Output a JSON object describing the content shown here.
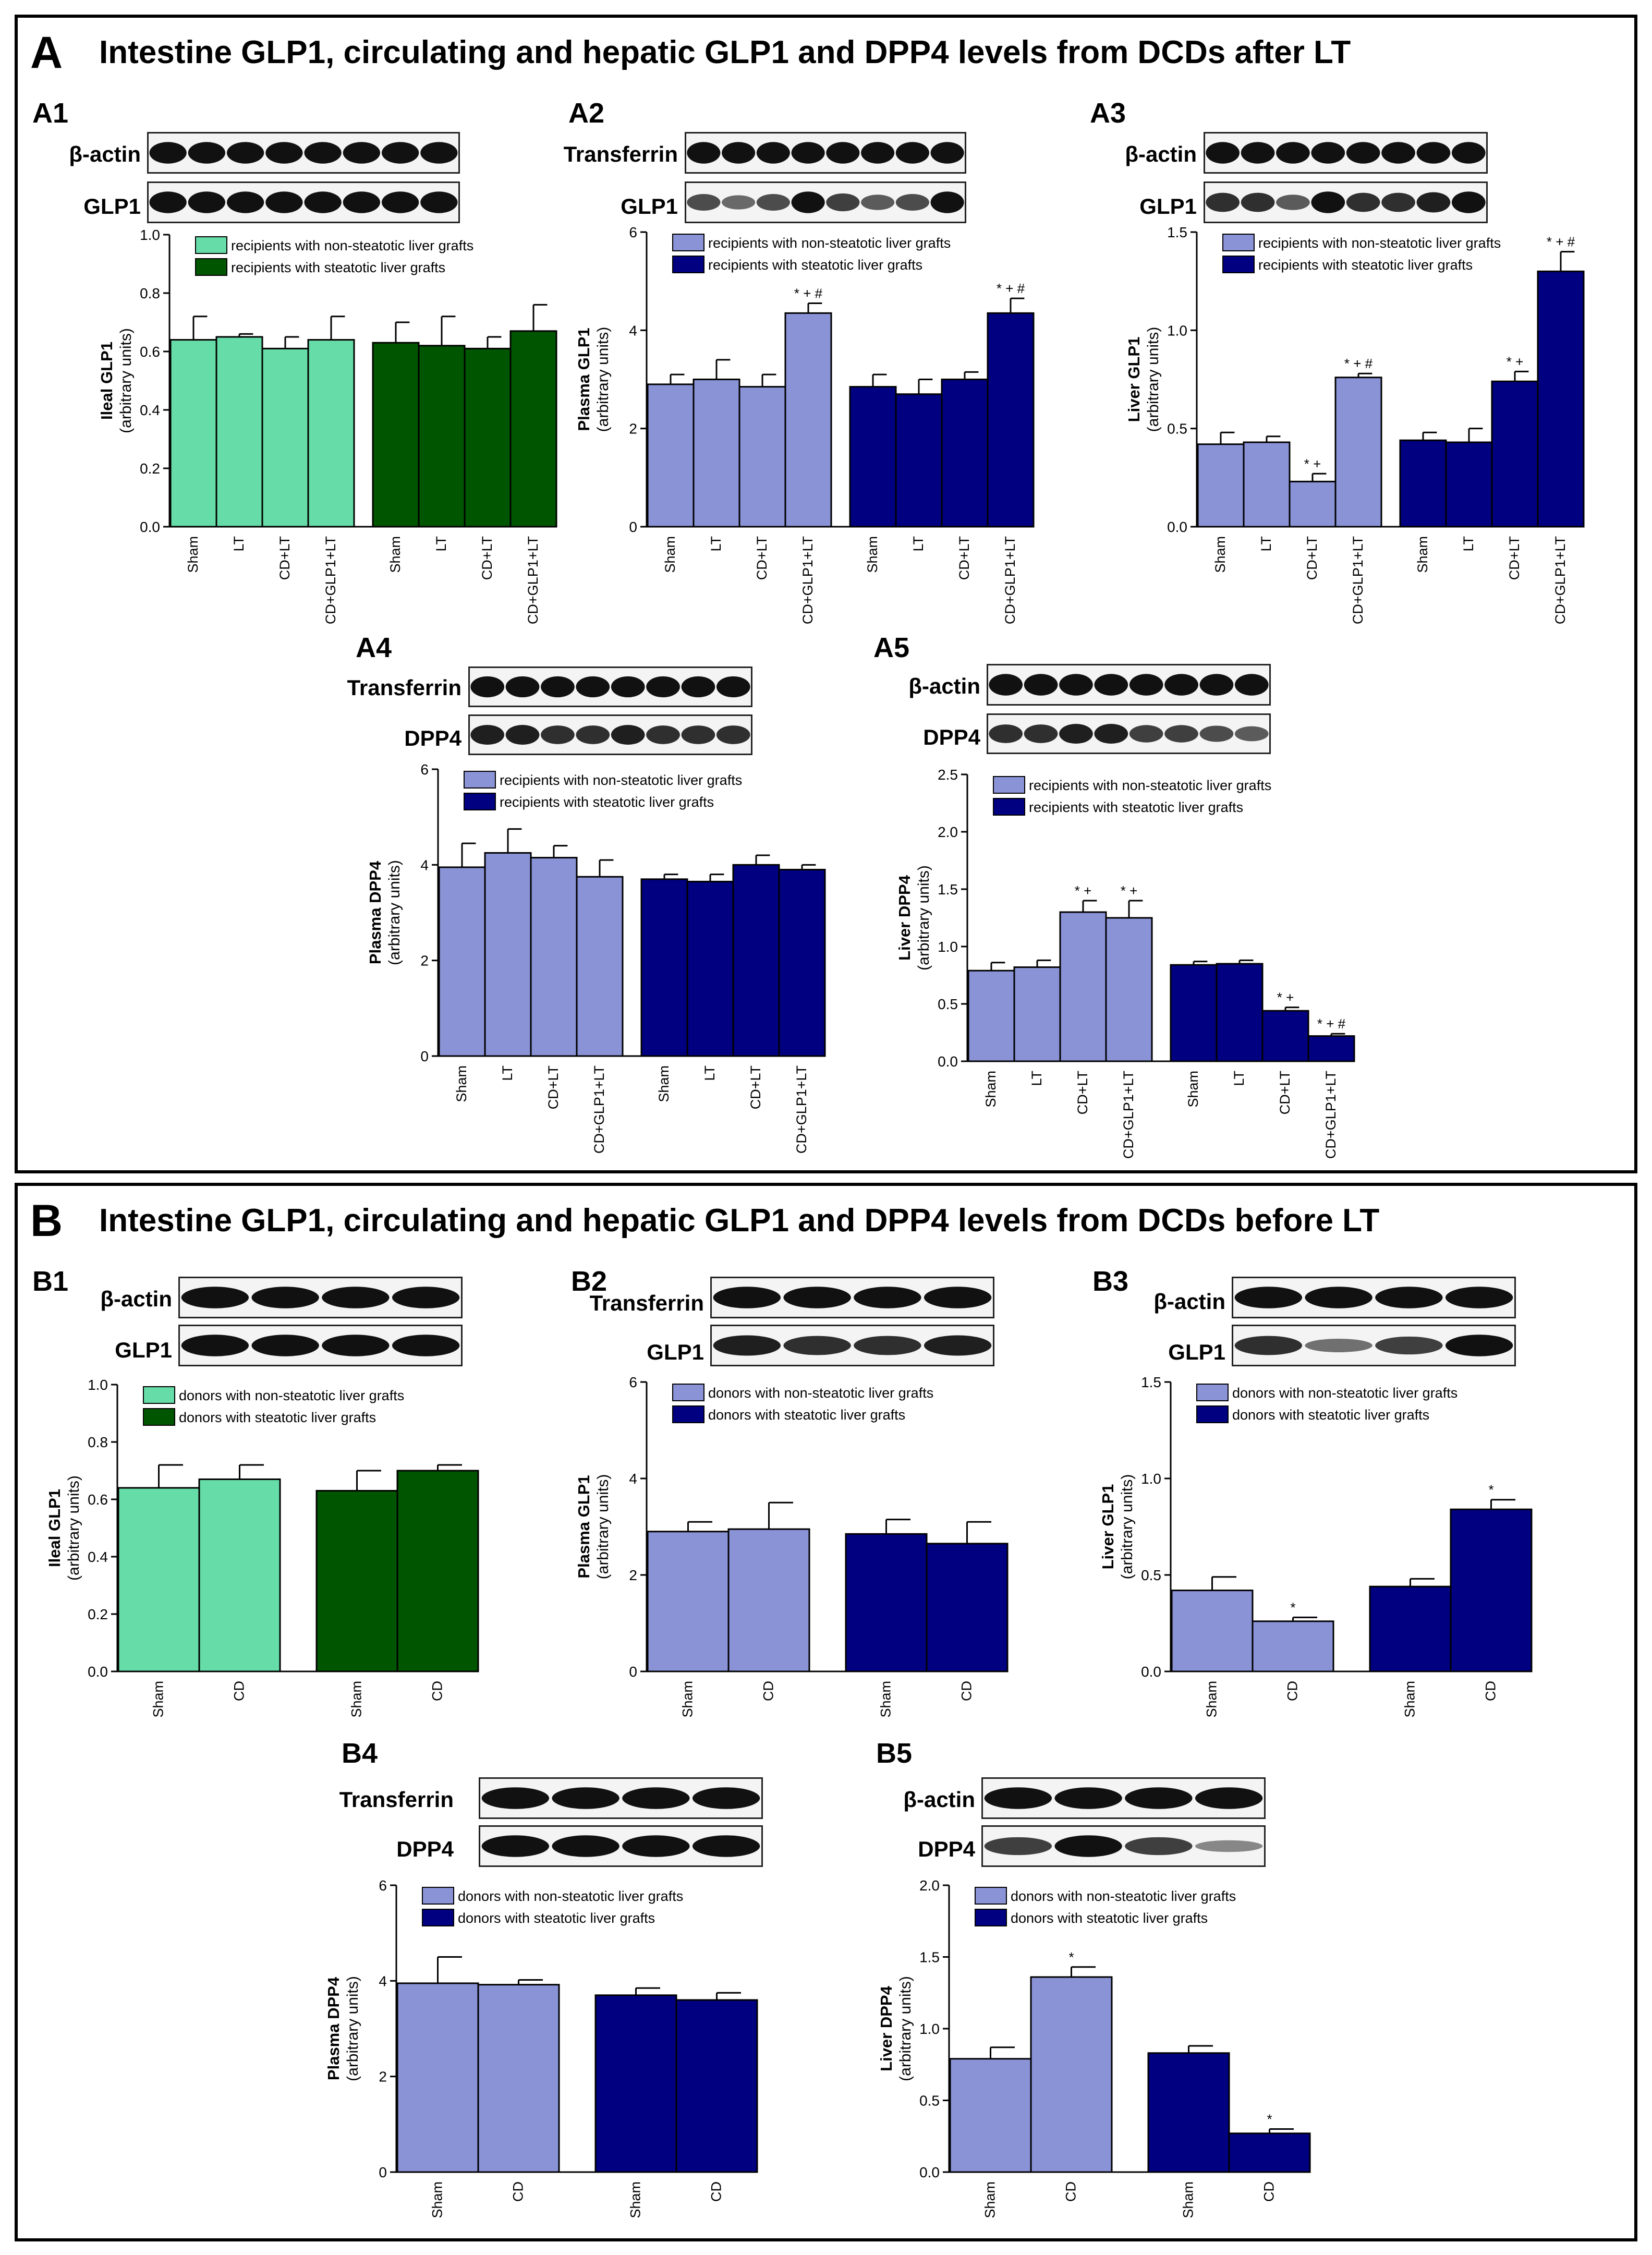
{
  "figure": {
    "sections": [
      {
        "letter": "A",
        "title": "Intestine GLP1, circulating and hepatic GLP1 and DPP4 levels from DCDs after LT"
      },
      {
        "letter": "B",
        "title": "Intestine GLP1, circulating and hepatic GLP1 and DPP4 levels from DCDs before LT"
      }
    ]
  },
  "colors": {
    "light_green": "#66dda8",
    "dark_green": "#005500",
    "light_blue": "#8a93d6",
    "dark_blue": "#000080",
    "border": "#000000"
  },
  "chart_data": [
    {
      "id": "A1",
      "type": "bar",
      "title": "A1",
      "blots": [
        {
          "label": "β-actin",
          "bands": [
            1,
            1,
            1,
            1,
            1,
            1,
            1,
            1
          ]
        },
        {
          "label": "GLP1",
          "bands": [
            1,
            1,
            1,
            1,
            1,
            1,
            1,
            1
          ]
        }
      ],
      "ylabel": "Ileal GLP1",
      "ylabel2": "(arbitrary units)",
      "ylim": [
        0,
        1.0
      ],
      "yticks": [
        "0.0",
        "0.2",
        "0.4",
        "0.6",
        "0.8",
        "1.0"
      ],
      "categories": [
        "Sham",
        "LT",
        "CD+LT",
        "CD+GLP1+LT"
      ],
      "series": [
        {
          "name": "recipients with non-steatotic liver grafts",
          "color": "#66dda8",
          "values": [
            0.64,
            0.65,
            0.61,
            0.64
          ],
          "errors": [
            0.08,
            0.01,
            0.04,
            0.08
          ],
          "annotations": [
            "",
            "",
            "",
            ""
          ]
        },
        {
          "name": "recipients with steatotic liver grafts",
          "color": "#005500",
          "values": [
            0.63,
            0.62,
            0.61,
            0.67
          ],
          "errors": [
            0.07,
            0.1,
            0.04,
            0.09
          ],
          "annotations": [
            "",
            "",
            "",
            ""
          ]
        }
      ]
    },
    {
      "id": "A2",
      "type": "bar",
      "title": "A2",
      "blots": [
        {
          "label": "Transferrin",
          "bands": [
            1,
            1,
            1,
            1,
            1,
            1,
            1,
            1
          ]
        },
        {
          "label": "GLP1",
          "bands": [
            0.6,
            0.4,
            0.6,
            1,
            0.7,
            0.5,
            0.6,
            1
          ]
        }
      ],
      "ylabel": "Plasma GLP1",
      "ylabel2": "(arbitrary units)",
      "ylim": [
        0,
        6
      ],
      "yticks": [
        "0",
        "2",
        "4",
        "6"
      ],
      "categories": [
        "Sham",
        "LT",
        "CD+LT",
        "CD+GLP1+LT"
      ],
      "series": [
        {
          "name": "recipients with non-steatotic liver grafts",
          "color": "#8a93d6",
          "values": [
            2.9,
            3.0,
            2.85,
            4.35
          ],
          "errors": [
            0.2,
            0.4,
            0.25,
            0.2
          ],
          "annotations": [
            "",
            "",
            "",
            "*+#"
          ]
        },
        {
          "name": "recipients with steatotic liver grafts",
          "color": "#000080",
          "values": [
            2.85,
            2.7,
            3.0,
            4.35
          ],
          "errors": [
            0.25,
            0.3,
            0.15,
            0.3
          ],
          "annotations": [
            "",
            "",
            "",
            "*+#"
          ]
        }
      ]
    },
    {
      "id": "A3",
      "type": "bar",
      "title": "A3",
      "blots": [
        {
          "label": "β-actin",
          "bands": [
            1,
            1,
            1,
            1,
            1,
            1,
            1,
            1
          ]
        },
        {
          "label": "GLP1",
          "bands": [
            0.8,
            0.8,
            0.5,
            1,
            0.8,
            0.8,
            0.9,
            1
          ]
        }
      ],
      "ylabel": "Liver GLP1",
      "ylabel2": "(arbitrary units)",
      "ylim": [
        0,
        1.5
      ],
      "yticks": [
        "0.0",
        "0.5",
        "1.0",
        "1.5"
      ],
      "categories": [
        "Sham",
        "LT",
        "CD+LT",
        "CD+GLP1+LT"
      ],
      "series": [
        {
          "name": "recipients with non-steatotic liver grafts",
          "color": "#8a93d6",
          "values": [
            0.42,
            0.43,
            0.23,
            0.76
          ],
          "errors": [
            0.06,
            0.03,
            0.04,
            0.02
          ],
          "annotations": [
            "",
            "",
            "*+",
            "*+#"
          ]
        },
        {
          "name": "recipients with steatotic liver grafts",
          "color": "#000080",
          "values": [
            0.44,
            0.43,
            0.74,
            1.3
          ],
          "errors": [
            0.04,
            0.07,
            0.05,
            0.1
          ],
          "annotations": [
            "",
            "",
            "*+",
            "*+#"
          ]
        }
      ]
    },
    {
      "id": "A4",
      "type": "bar",
      "title": "A4",
      "blots": [
        {
          "label": "Transferrin",
          "bands": [
            1,
            1,
            1,
            1,
            1,
            1,
            1,
            1
          ]
        },
        {
          "label": "DPP4",
          "bands": [
            0.9,
            0.9,
            0.8,
            0.8,
            0.9,
            0.8,
            0.8,
            0.8
          ]
        }
      ],
      "ylabel": "Plasma DPP4",
      "ylabel2": "(arbitrary units)",
      "ylim": [
        0,
        6
      ],
      "yticks": [
        "0",
        "2",
        "4",
        "6"
      ],
      "categories": [
        "Sham",
        "LT",
        "CD+LT",
        "CD+GLP1+LT"
      ],
      "series": [
        {
          "name": "recipients with non-steatotic liver grafts",
          "color": "#8a93d6",
          "values": [
            3.95,
            4.25,
            4.15,
            3.75
          ],
          "errors": [
            0.5,
            0.5,
            0.25,
            0.35
          ],
          "annotations": [
            "",
            "",
            "",
            ""
          ]
        },
        {
          "name": "recipients with steatotic liver grafts",
          "color": "#000080",
          "values": [
            3.7,
            3.65,
            4.0,
            3.9
          ],
          "errors": [
            0.1,
            0.15,
            0.2,
            0.1
          ],
          "annotations": [
            "",
            "",
            "",
            ""
          ]
        }
      ]
    },
    {
      "id": "A5",
      "type": "bar",
      "title": "A5",
      "blots": [
        {
          "label": "β-actin",
          "bands": [
            1,
            1,
            1,
            1,
            1,
            1,
            1,
            1
          ]
        },
        {
          "label": "DPP4",
          "bands": [
            0.8,
            0.8,
            0.9,
            0.9,
            0.7,
            0.7,
            0.6,
            0.5
          ]
        }
      ],
      "ylabel": "Liver DPP4",
      "ylabel2": "(arbitrary units)",
      "ylim": [
        0,
        2.5
      ],
      "yticks": [
        "0.0",
        "0.5",
        "1.0",
        "1.5",
        "2.0",
        "2.5"
      ],
      "categories": [
        "Sham",
        "LT",
        "CD+LT",
        "CD+GLP1+LT"
      ],
      "series": [
        {
          "name": "recipients with non-steatotic liver grafts",
          "color": "#8a93d6",
          "values": [
            0.79,
            0.82,
            1.3,
            1.25
          ],
          "errors": [
            0.07,
            0.06,
            0.1,
            0.15
          ],
          "annotations": [
            "",
            "",
            "*+",
            "*+"
          ]
        },
        {
          "name": "recipients with steatotic liver grafts",
          "color": "#000080",
          "values": [
            0.84,
            0.85,
            0.44,
            0.22
          ],
          "errors": [
            0.03,
            0.03,
            0.03,
            0.02
          ],
          "annotations": [
            "",
            "",
            "*+",
            "*+#"
          ]
        }
      ]
    },
    {
      "id": "B1",
      "type": "bar",
      "title": "B1",
      "blots": [
        {
          "label": "β-actin",
          "bands": [
            1,
            1,
            1,
            1
          ]
        },
        {
          "label": "GLP1",
          "bands": [
            1,
            1,
            1,
            1
          ]
        }
      ],
      "ylabel": "Ileal GLP1",
      "ylabel2": "(arbitrary units)",
      "ylim": [
        0,
        1.0
      ],
      "yticks": [
        "0.0",
        "0.2",
        "0.4",
        "0.6",
        "0.8",
        "1.0"
      ],
      "categories": [
        "Sham",
        "CD"
      ],
      "series": [
        {
          "name": "donors with non-steatotic liver grafts",
          "color": "#66dda8",
          "values": [
            0.64,
            0.67
          ],
          "errors": [
            0.08,
            0.05
          ],
          "annotations": [
            "",
            ""
          ]
        },
        {
          "name": "donors with steatotic liver grafts",
          "color": "#005500",
          "values": [
            0.63,
            0.7
          ],
          "errors": [
            0.07,
            0.02
          ],
          "annotations": [
            "",
            ""
          ]
        }
      ]
    },
    {
      "id": "B2",
      "type": "bar",
      "title": "B2",
      "blots": [
        {
          "label": "Transferrin",
          "bands": [
            1,
            1,
            1,
            1
          ]
        },
        {
          "label": "GLP1",
          "bands": [
            0.9,
            0.8,
            0.8,
            0.9
          ]
        }
      ],
      "ylabel": "Plasma GLP1",
      "ylabel2": "(arbitrary units)",
      "ylim": [
        0,
        6
      ],
      "yticks": [
        "0",
        "2",
        "4",
        "6"
      ],
      "categories": [
        "Sham",
        "CD"
      ],
      "series": [
        {
          "name": "donors with non-steatotic liver grafts",
          "color": "#8a93d6",
          "values": [
            2.9,
            2.95
          ],
          "errors": [
            0.2,
            0.55
          ],
          "annotations": [
            "",
            ""
          ]
        },
        {
          "name": "donors with steatotic liver grafts",
          "color": "#000080",
          "values": [
            2.85,
            2.65
          ],
          "errors": [
            0.3,
            0.45
          ],
          "annotations": [
            "",
            ""
          ]
        }
      ]
    },
    {
      "id": "B3",
      "type": "bar",
      "title": "B3",
      "blots": [
        {
          "label": "β-actin",
          "bands": [
            1,
            1,
            1,
            1
          ]
        },
        {
          "label": "GLP1",
          "bands": [
            0.8,
            0.35,
            0.7,
            1
          ]
        }
      ],
      "ylabel": "Liver GLP1",
      "ylabel2": "(arbitrary units)",
      "ylim": [
        0,
        1.5
      ],
      "yticks": [
        "0.0",
        "0.5",
        "1.0",
        "1.5"
      ],
      "categories": [
        "Sham",
        "CD"
      ],
      "series": [
        {
          "name": "donors with non-steatotic liver grafts",
          "color": "#8a93d6",
          "values": [
            0.42,
            0.26
          ],
          "errors": [
            0.07,
            0.02
          ],
          "annotations": [
            "",
            "*"
          ]
        },
        {
          "name": "donors with steatotic liver grafts",
          "color": "#000080",
          "values": [
            0.44,
            0.84
          ],
          "errors": [
            0.04,
            0.05
          ],
          "annotations": [
            "",
            "*"
          ]
        }
      ]
    },
    {
      "id": "B4",
      "type": "bar",
      "title": "B4",
      "blots": [
        {
          "label": "Transferrin",
          "bands": [
            1,
            1,
            1,
            1
          ]
        },
        {
          "label": "DPP4",
          "bands": [
            1,
            1,
            1,
            1
          ]
        }
      ],
      "ylabel": "Plasma DPP4",
      "ylabel2": "(arbitrary units)",
      "ylim": [
        0,
        6
      ],
      "yticks": [
        "0",
        "2",
        "4",
        "6"
      ],
      "categories": [
        "Sham",
        "CD"
      ],
      "series": [
        {
          "name": "donors with non-steatotic liver grafts",
          "color": "#8a93d6",
          "values": [
            3.95,
            3.92
          ],
          "errors": [
            0.55,
            0.1
          ],
          "annotations": [
            "",
            ""
          ]
        },
        {
          "name": "donors with steatotic liver grafts",
          "color": "#000080",
          "values": [
            3.7,
            3.6
          ],
          "errors": [
            0.15,
            0.15
          ],
          "annotations": [
            "",
            ""
          ]
        }
      ]
    },
    {
      "id": "B5",
      "type": "bar",
      "title": "B5",
      "blots": [
        {
          "label": "β-actin",
          "bands": [
            1,
            1,
            1,
            1
          ]
        },
        {
          "label": "DPP4",
          "bands": [
            0.7,
            1,
            0.7,
            0.2
          ]
        }
      ],
      "ylabel": "Liver DPP4",
      "ylabel2": "(arbitrary units)",
      "ylim": [
        0,
        2.0
      ],
      "yticks": [
        "0.0",
        "0.5",
        "1.0",
        "1.5",
        "2.0"
      ],
      "categories": [
        "Sham",
        "CD"
      ],
      "series": [
        {
          "name": "donors with non-steatotic liver grafts",
          "color": "#8a93d6",
          "values": [
            0.79,
            1.36
          ],
          "errors": [
            0.08,
            0.07
          ],
          "annotations": [
            "",
            "*"
          ]
        },
        {
          "name": "donors with steatotic liver grafts",
          "color": "#000080",
          "values": [
            0.83,
            0.27
          ],
          "errors": [
            0.05,
            0.03
          ],
          "annotations": [
            "",
            "*"
          ]
        }
      ]
    }
  ]
}
